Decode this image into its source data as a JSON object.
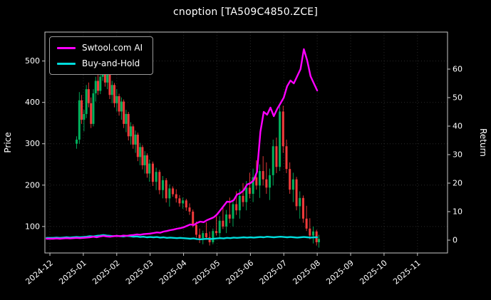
{
  "window": {
    "title": "cnoption [TA509C4850.ZCE]"
  },
  "axes": {
    "left_label": "Price",
    "right_label": "Return"
  },
  "legend": {
    "items": [
      {
        "label": "Swtool.com AI",
        "color": "#ff00ff"
      },
      {
        "label": "Buy-and-Hold",
        "color": "#00dcdc"
      }
    ]
  },
  "chart_data": {
    "type": "candlestick+line",
    "title": "cnoption [TA509C4850.ZCE]",
    "x_tick_labels": [
      "2024-12",
      "2025-01",
      "2025-02",
      "2025-03",
      "2025-04",
      "2025-05",
      "2025-06",
      "2025-07",
      "2025-08",
      "2025-09",
      "2025-10",
      "2025-11"
    ],
    "x_tick_positions": [
      0,
      1,
      2,
      3,
      4,
      5,
      6,
      7,
      8,
      9,
      10,
      11
    ],
    "x_range": [
      -0.15,
      11.9
    ],
    "price_ticks": [
      100,
      200,
      300,
      400,
      500
    ],
    "price_range": [
      36,
      570
    ],
    "return_ticks": [
      0,
      10,
      20,
      30,
      40,
      50,
      60
    ],
    "return_range": [
      -4.5,
      73
    ],
    "colors": {
      "up": "#00b25d",
      "down": "#f23b3b",
      "ai": "#ff00ff",
      "bh": "#00dcdc",
      "grid": "#2a2a2a",
      "frame": "#c8c8c8",
      "text": "#ffffff",
      "bg": "#000000"
    },
    "candles": [
      [
        0.8,
        300,
        318,
        288,
        310
      ],
      [
        0.88,
        310,
        425,
        300,
        405
      ],
      [
        0.95,
        405,
        418,
        348,
        358
      ],
      [
        1.02,
        358,
        382,
        330,
        372
      ],
      [
        1.09,
        372,
        442,
        362,
        432
      ],
      [
        1.16,
        432,
        448,
        388,
        398
      ],
      [
        1.23,
        398,
        412,
        338,
        348
      ],
      [
        1.3,
        348,
        432,
        342,
        422
      ],
      [
        1.37,
        422,
        462,
        402,
        452
      ],
      [
        1.44,
        452,
        468,
        418,
        428
      ],
      [
        1.51,
        428,
        472,
        420,
        462
      ],
      [
        1.58,
        462,
        537,
        452,
        518
      ],
      [
        1.65,
        518,
        528,
        438,
        448
      ],
      [
        1.72,
        448,
        482,
        432,
        472
      ],
      [
        1.79,
        472,
        478,
        408,
        418
      ],
      [
        1.86,
        418,
        452,
        398,
        442
      ],
      [
        1.93,
        442,
        447,
        388,
        398
      ],
      [
        2.0,
        398,
        432,
        378,
        415
      ],
      [
        2.07,
        415,
        421,
        368,
        378
      ],
      [
        2.14,
        378,
        412,
        358,
        402
      ],
      [
        2.21,
        402,
        407,
        338,
        348
      ],
      [
        2.28,
        348,
        382,
        328,
        372
      ],
      [
        2.35,
        372,
        377,
        308,
        318
      ],
      [
        2.42,
        318,
        352,
        298,
        342
      ],
      [
        2.49,
        342,
        347,
        288,
        298
      ],
      [
        2.56,
        298,
        332,
        278,
        322
      ],
      [
        2.63,
        322,
        327,
        258,
        268
      ],
      [
        2.7,
        268,
        302,
        248,
        292
      ],
      [
        2.77,
        292,
        297,
        238,
        248
      ],
      [
        2.84,
        248,
        282,
        228,
        272
      ],
      [
        2.91,
        272,
        277,
        218,
        228
      ],
      [
        2.98,
        228,
        262,
        208,
        252
      ],
      [
        3.08,
        252,
        257,
        198,
        208
      ],
      [
        3.18,
        208,
        242,
        188,
        232
      ],
      [
        3.28,
        232,
        237,
        178,
        188
      ],
      [
        3.38,
        188,
        222,
        168,
        212
      ],
      [
        3.48,
        212,
        217,
        158,
        168
      ],
      [
        3.58,
        168,
        202,
        148,
        192
      ],
      [
        3.68,
        192,
        197,
        172,
        178
      ],
      [
        3.78,
        178,
        190,
        158,
        168
      ],
      [
        3.88,
        168,
        176,
        148,
        156
      ],
      [
        3.98,
        156,
        170,
        143,
        163
      ],
      [
        4.08,
        163,
        167,
        138,
        146
      ],
      [
        4.18,
        146,
        156,
        128,
        136
      ],
      [
        4.28,
        136,
        141,
        98,
        104
      ],
      [
        4.38,
        104,
        112,
        73,
        80
      ],
      [
        4.48,
        80,
        95,
        60,
        72
      ],
      [
        4.58,
        72,
        90,
        57,
        84
      ],
      [
        4.68,
        84,
        110,
        68,
        74
      ],
      [
        4.78,
        74,
        88,
        54,
        62
      ],
      [
        4.88,
        62,
        95,
        57,
        89
      ],
      [
        4.98,
        89,
        130,
        78,
        84
      ],
      [
        5.08,
        84,
        125,
        70,
        114
      ],
      [
        5.18,
        114,
        150,
        94,
        100
      ],
      [
        5.28,
        100,
        140,
        84,
        129
      ],
      [
        5.38,
        129,
        170,
        108,
        119
      ],
      [
        5.48,
        119,
        165,
        100,
        154
      ],
      [
        5.58,
        154,
        185,
        128,
        139
      ],
      [
        5.68,
        139,
        190,
        119,
        174
      ],
      [
        5.78,
        174,
        205,
        148,
        159
      ],
      [
        5.88,
        159,
        210,
        139,
        194
      ],
      [
        5.98,
        194,
        230,
        168,
        179
      ],
      [
        6.08,
        179,
        240,
        159,
        219
      ],
      [
        6.18,
        219,
        260,
        189,
        199
      ],
      [
        6.28,
        199,
        250,
        169,
        234
      ],
      [
        6.38,
        234,
        270,
        199,
        214
      ],
      [
        6.48,
        214,
        255,
        179,
        194
      ],
      [
        6.58,
        194,
        240,
        164,
        224
      ],
      [
        6.68,
        224,
        310,
        199,
        294
      ],
      [
        6.78,
        294,
        315,
        229,
        244
      ],
      [
        6.88,
        244,
        390,
        234,
        378
      ],
      [
        6.98,
        378,
        392,
        278,
        294
      ],
      [
        7.08,
        294,
        310,
        229,
        239
      ],
      [
        7.18,
        239,
        255,
        179,
        189
      ],
      [
        7.28,
        189,
        230,
        159,
        214
      ],
      [
        7.38,
        214,
        220,
        139,
        149
      ],
      [
        7.48,
        149,
        185,
        119,
        169
      ],
      [
        7.58,
        169,
        175,
        109,
        119
      ],
      [
        7.68,
        119,
        150,
        89,
        95
      ],
      [
        7.78,
        95,
        120,
        69,
        78
      ],
      [
        7.88,
        78,
        100,
        59,
        88
      ],
      [
        7.98,
        88,
        92,
        54,
        62
      ],
      [
        8.05,
        62,
        80,
        49,
        70
      ]
    ],
    "series": [
      {
        "name": "Swtool.com AI",
        "axis": "return",
        "color_key": "ai",
        "x_start": -0.1,
        "x_step": 0.1,
        "values": [
          0.5,
          0.5,
          0.5,
          0.6,
          0.5,
          0.6,
          0.7,
          0.6,
          0.7,
          0.8,
          0.7,
          0.8,
          0.9,
          1.0,
          1.2,
          1.0,
          1.3,
          1.5,
          1.3,
          1.2,
          1.4,
          1.5,
          1.4,
          1.6,
          1.5,
          1.7,
          1.8,
          2.0,
          1.9,
          2.1,
          2.2,
          2.3,
          2.5,
          2.7,
          2.6,
          3.0,
          3.2,
          3.5,
          3.7,
          4.0,
          4.2,
          4.5,
          5.0,
          5.5,
          5.3,
          6.0,
          6.5,
          6.3,
          7.0,
          7.5,
          8.0,
          9.0,
          10.5,
          12.0,
          13.5,
          13.4,
          14.0,
          16.0,
          16.5,
          17.5,
          19.5,
          20.0,
          21.0,
          24.0,
          38.0,
          45.0,
          44.0,
          46.5,
          43.5,
          46.0,
          48.0,
          50.0,
          54.0,
          56.0,
          55.0,
          57.5,
          60.0,
          67.0,
          63.0,
          57.5,
          55.0,
          52.5
        ]
      },
      {
        "name": "Buy-and-Hold",
        "axis": "return",
        "color_key": "bh",
        "x_start": -0.1,
        "x_step": 0.1,
        "values": [
          0.8,
          0.8,
          0.8,
          0.9,
          0.8,
          0.9,
          1.0,
          0.9,
          1.0,
          1.1,
          1.0,
          1.1,
          1.2,
          1.4,
          1.3,
          1.5,
          1.6,
          1.8,
          1.6,
          1.5,
          1.4,
          1.5,
          1.4,
          1.3,
          1.5,
          1.4,
          1.2,
          1.3,
          1.1,
          1.2,
          1.0,
          1.1,
          1.0,
          1.1,
          0.9,
          1.0,
          0.8,
          0.9,
          0.8,
          0.7,
          0.8,
          0.7,
          0.6,
          0.5,
          0.6,
          0.4,
          0.3,
          0.4,
          0.5,
          0.4,
          0.5,
          0.6,
          0.7,
          0.6,
          0.8,
          0.7,
          0.9,
          0.8,
          0.9,
          1.0,
          0.9,
          1.0,
          0.9,
          1.0,
          1.1,
          1.0,
          1.2,
          1.1,
          1.0,
          1.1,
          1.2,
          1.1,
          1.0,
          1.1,
          1.0,
          0.9,
          1.0,
          1.1,
          1.0,
          0.9,
          1.0,
          1.0
        ]
      }
    ]
  }
}
